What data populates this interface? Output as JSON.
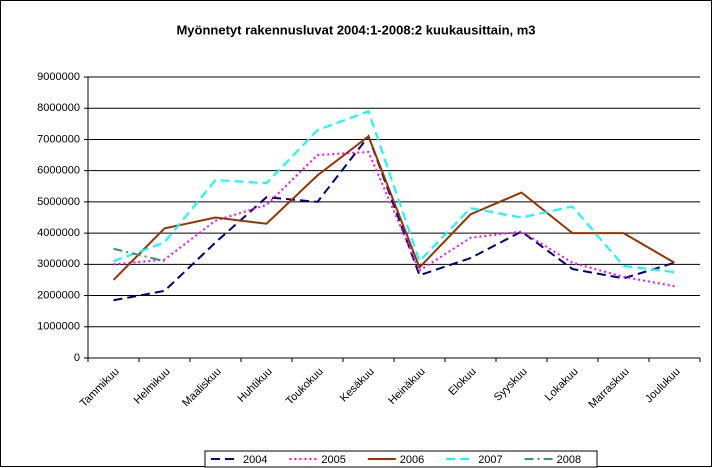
{
  "chart_data": {
    "type": "line",
    "title": "Myönnetyt rakennusluvat 2004:1-2008:2 kuukausittain, m3",
    "categories": [
      "Tammikuu",
      "Helmikuu",
      "Maaliskuu",
      "Huhtikuu",
      "Toukokuu",
      "Kesäkuu",
      "Heinäkuu",
      "Elokuu",
      "Syyskuu",
      "Lokakuu",
      "Marraskuu",
      "Joulukuu"
    ],
    "series": [
      {
        "name": "2004",
        "color": "#000080",
        "dash": "dash",
        "values": [
          1850000,
          2150000,
          3700000,
          5150000,
          5000000,
          7100000,
          2650000,
          3200000,
          4050000,
          2850000,
          2550000,
          3050000
        ]
      },
      {
        "name": "2005",
        "color": "#ff00ff",
        "dash": "dot",
        "values": [
          3000000,
          3150000,
          4400000,
          4900000,
          6500000,
          6600000,
          2800000,
          3850000,
          4050000,
          3050000,
          2600000,
          2300000
        ]
      },
      {
        "name": "2006",
        "color": "#993300",
        "dash": "solid",
        "values": [
          2500000,
          4150000,
          4500000,
          4300000,
          5850000,
          7100000,
          2900000,
          4600000,
          5300000,
          4000000,
          4000000,
          3050000
        ]
      },
      {
        "name": "2007",
        "color": "#00ffff",
        "dash": "dash",
        "values": [
          3100000,
          3700000,
          5700000,
          5600000,
          7300000,
          7900000,
          3100000,
          4800000,
          4500000,
          4850000,
          2950000,
          2750000
        ]
      },
      {
        "name": "2008",
        "color": "#339966",
        "dash": "dashdot",
        "values": [
          3500000,
          3100000,
          null,
          null,
          null,
          null,
          null,
          null,
          null,
          null,
          null,
          null
        ]
      }
    ],
    "ylim": [
      0,
      9000000
    ],
    "yticks": [
      0,
      1000000,
      2000000,
      3000000,
      4000000,
      5000000,
      6000000,
      7000000,
      8000000,
      9000000
    ],
    "grid": true,
    "legend": "bottom"
  }
}
